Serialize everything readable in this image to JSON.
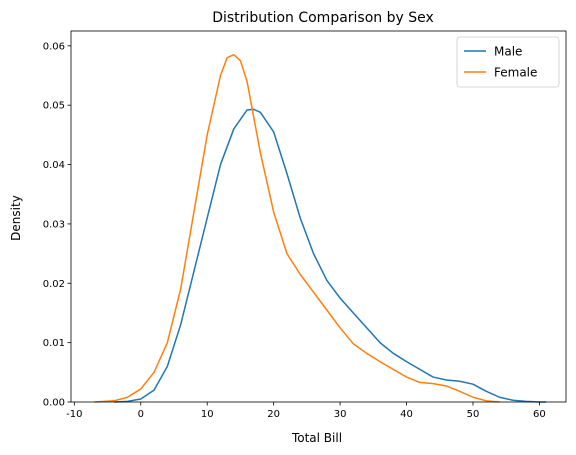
{
  "chart_data": {
    "type": "line",
    "title": "Distribution Comparison by Sex",
    "xlabel": "Total Bill",
    "ylabel": "Density",
    "xlim": [
      -10.5,
      64
    ],
    "ylim": [
      0,
      0.0625
    ],
    "xticks": [
      -10,
      0,
      10,
      20,
      30,
      40,
      50,
      60
    ],
    "yticks": [
      0.0,
      0.01,
      0.02,
      0.03,
      0.04,
      0.05,
      0.06
    ],
    "ytick_labels": [
      "0.00",
      "0.01",
      "0.02",
      "0.03",
      "0.04",
      "0.05",
      "0.06"
    ],
    "legend": "upper-right",
    "grid": false,
    "series": [
      {
        "name": "Male",
        "color": "#1f77b4",
        "x": [
          -4,
          -2,
          0,
          2,
          4,
          6,
          8,
          10,
          12,
          14,
          16,
          17,
          18,
          20,
          22,
          24,
          26,
          28,
          30,
          32,
          34,
          36,
          38,
          40,
          42,
          44,
          46,
          48,
          50,
          52,
          54,
          56,
          58,
          60,
          61
        ],
        "y": [
          0.0,
          0.0001,
          0.0005,
          0.002,
          0.006,
          0.013,
          0.022,
          0.031,
          0.04,
          0.046,
          0.0492,
          0.0493,
          0.0488,
          0.0455,
          0.0385,
          0.031,
          0.025,
          0.0205,
          0.0175,
          0.015,
          0.0125,
          0.01,
          0.0082,
          0.0068,
          0.0055,
          0.0042,
          0.0037,
          0.0035,
          0.003,
          0.0018,
          0.0008,
          0.0003,
          0.0001,
          0.0,
          0.0
        ]
      },
      {
        "name": "Female",
        "color": "#ff7f0e",
        "x": [
          -7,
          -4,
          -2,
          0,
          2,
          4,
          6,
          8,
          10,
          12,
          13,
          14,
          15,
          16,
          17,
          18,
          20,
          22,
          24,
          26,
          28,
          30,
          32,
          34,
          36,
          38,
          40,
          42,
          44,
          46,
          48,
          50,
          52,
          54
        ],
        "y": [
          0.0,
          0.0002,
          0.0008,
          0.0022,
          0.005,
          0.01,
          0.019,
          0.032,
          0.045,
          0.055,
          0.058,
          0.0585,
          0.0575,
          0.054,
          0.048,
          0.042,
          0.032,
          0.025,
          0.0215,
          0.0185,
          0.0155,
          0.0125,
          0.0098,
          0.0082,
          0.0068,
          0.0055,
          0.0042,
          0.0033,
          0.0031,
          0.0027,
          0.0018,
          0.0008,
          0.0002,
          0.0
        ]
      }
    ]
  }
}
